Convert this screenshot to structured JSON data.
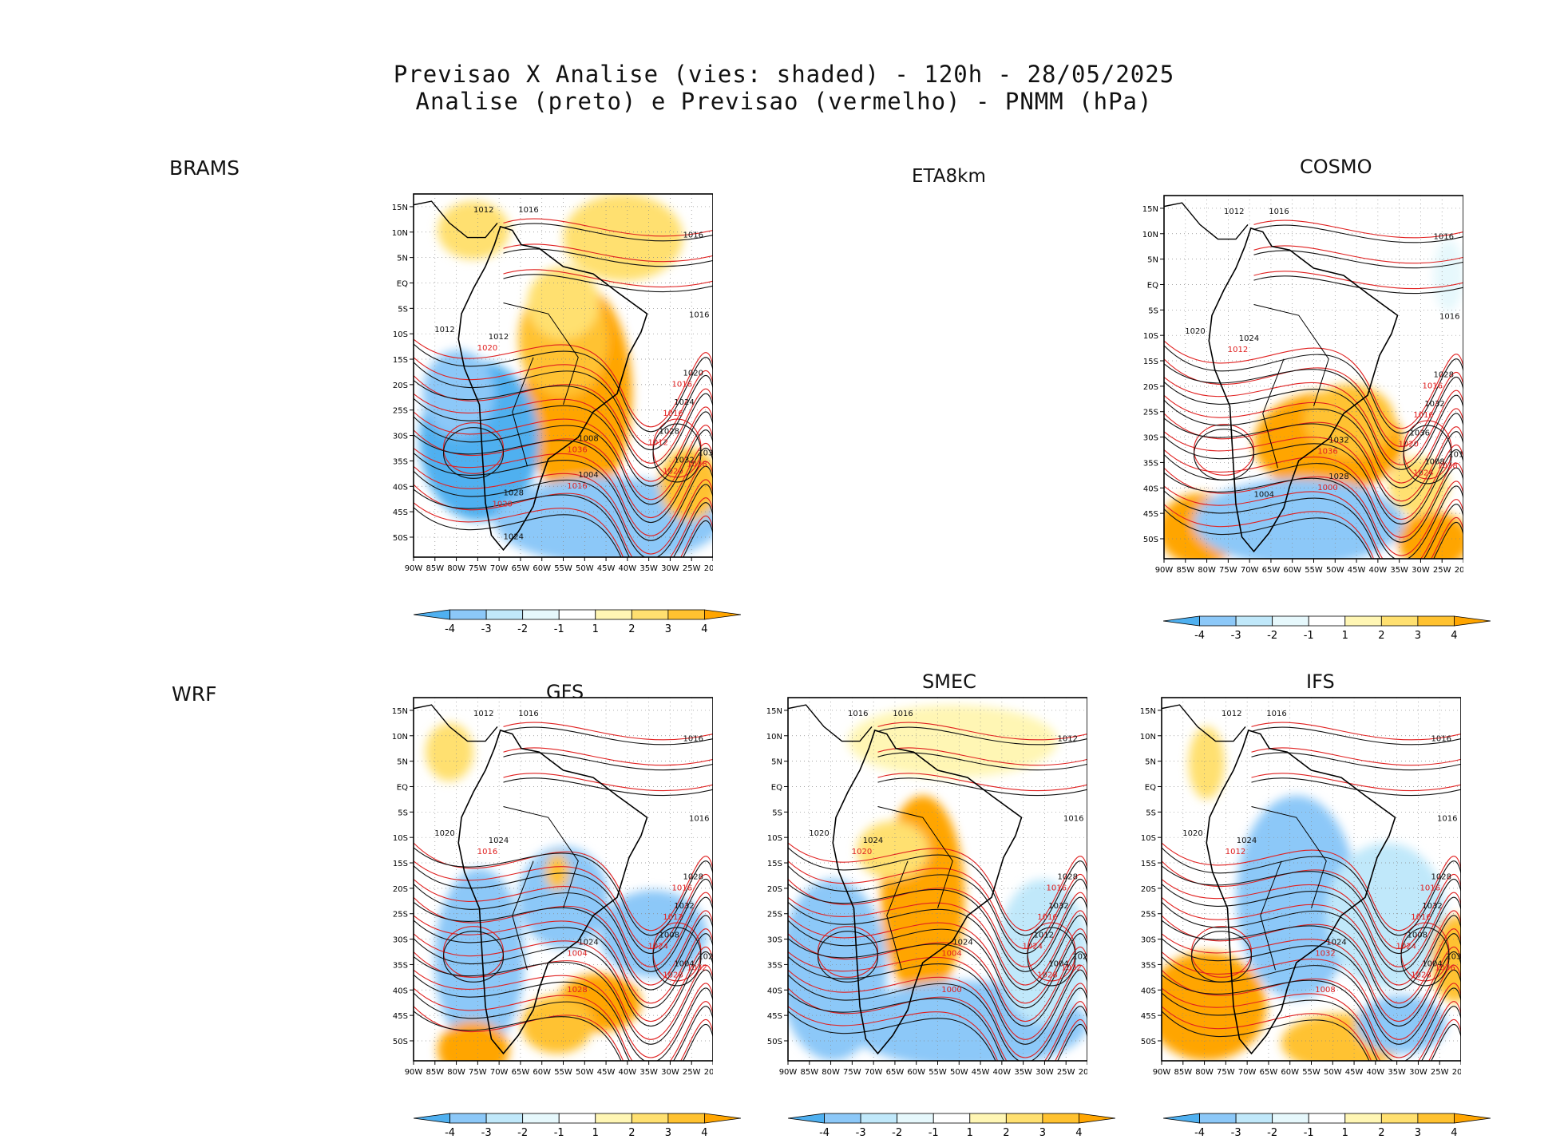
{
  "title": {
    "line1": "Previsao X Analise (vies: shaded) - 120h - 28/05/2025",
    "line2": "Analise (preto) e Previsao (vermelho) - PNMM (hPa)"
  },
  "side_labels": {
    "top": "BRAMS",
    "bottom": "WRF"
  },
  "axes": {
    "lat_labels": [
      "15N",
      "10N",
      "5N",
      "EQ",
      "5S",
      "10S",
      "15S",
      "20S",
      "25S",
      "30S",
      "35S",
      "40S",
      "45S",
      "50S"
    ],
    "lon_labels": [
      "90W",
      "85W",
      "80W",
      "75W",
      "70W",
      "65W",
      "60W",
      "55W",
      "50W",
      "45W",
      "40W",
      "35W",
      "30W",
      "25W",
      "20W"
    ]
  },
  "colorbar": {
    "labels": [
      "-4",
      "-3",
      "-2",
      "-1",
      "1",
      "2",
      "3",
      "4"
    ],
    "colors": [
      "#4fb0f0",
      "#8cc8f8",
      "#c0e8fa",
      "#e6f8fc",
      "#ffffff",
      "#fff6b4",
      "#ffe070",
      "#ffc230",
      "#ffa500"
    ]
  },
  "line_colors": {
    "analysis": "#111111",
    "forecast": "#e02020"
  },
  "panels": [
    {
      "id": "brams",
      "title": "",
      "isobars": [
        "1012",
        "1016",
        "1016",
        "1016",
        "1012",
        "1012",
        "1020",
        "1024",
        "1028",
        "1032",
        "1036",
        "1008",
        "1004",
        "1028",
        "1024"
      ],
      "forecast_labels": [
        "1020",
        "1016",
        "1016",
        "1012",
        "1020",
        "1028",
        "1036",
        "1016",
        "1020"
      ]
    },
    {
      "id": "cosmo",
      "title": "COSMO",
      "isobars": [
        "1012",
        "1016",
        "1016",
        "1016",
        "1020",
        "1024",
        "1028",
        "1032",
        "1036",
        "1008",
        "1012",
        "1032",
        "1028",
        "1004"
      ],
      "forecast_labels": [
        "1012",
        "1016",
        "1016",
        "1020",
        "1024",
        "1028",
        "1036",
        "1000"
      ]
    },
    {
      "id": "gfs",
      "title": "GFS",
      "isobars": [
        "1012",
        "1016",
        "1016",
        "1016",
        "1020",
        "1024",
        "1028",
        "1032",
        "1008",
        "1004",
        "1028",
        "1024"
      ],
      "forecast_labels": [
        "1016",
        "1016",
        "1012",
        "1024",
        "1028",
        "1032",
        "1004",
        "1028"
      ]
    },
    {
      "id": "smec",
      "title": "SMEC",
      "isobars": [
        "1016",
        "1016",
        "1012",
        "1016",
        "1020",
        "1024",
        "1028",
        "1032",
        "1012",
        "1004",
        "1028",
        "1024"
      ],
      "forecast_labels": [
        "1020",
        "1016",
        "1016",
        "1024",
        "1028",
        "1032",
        "1004",
        "1000"
      ]
    },
    {
      "id": "ifs",
      "title": "IFS",
      "isobars": [
        "1012",
        "1016",
        "1016",
        "1016",
        "1020",
        "1024",
        "1028",
        "1032",
        "1008",
        "1004",
        "1032",
        "1024"
      ],
      "forecast_labels": [
        "1012",
        "1016",
        "1016",
        "1024",
        "1028",
        "1036",
        "1032",
        "1008"
      ]
    }
  ],
  "eta_label": "ETA8km"
}
